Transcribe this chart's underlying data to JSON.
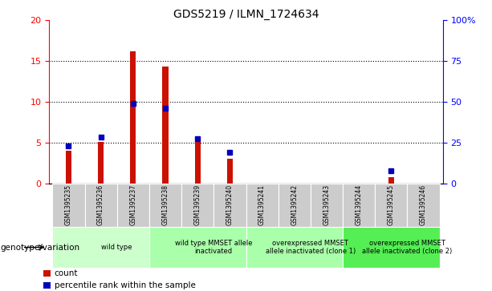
{
  "title": "GDS5219 / ILMN_1724634",
  "samples": [
    "GSM1395235",
    "GSM1395236",
    "GSM1395237",
    "GSM1395238",
    "GSM1395239",
    "GSM1395240",
    "GSM1395241",
    "GSM1395242",
    "GSM1395243",
    "GSM1395244",
    "GSM1395245",
    "GSM1395246"
  ],
  "count_values": [
    4.0,
    5.1,
    16.2,
    14.3,
    5.4,
    3.0,
    0.0,
    0.0,
    0.0,
    0.0,
    0.8,
    0.0
  ],
  "percentile_values": [
    23.0,
    28.5,
    49.0,
    46.0,
    27.5,
    19.0,
    0.0,
    0.0,
    0.0,
    0.0,
    7.5,
    0.0
  ],
  "ylim_left": [
    0,
    20
  ],
  "ylim_right": [
    0,
    100
  ],
  "yticks_left": [
    0,
    5,
    10,
    15,
    20
  ],
  "yticks_right": [
    0,
    25,
    50,
    75,
    100
  ],
  "bar_color": "#cc1100",
  "marker_color": "#0000bb",
  "groups": [
    {
      "label": "wild type",
      "start": 0,
      "end": 3,
      "color": "#ccffcc"
    },
    {
      "label": "wild type MMSET allele\ninactivated",
      "start": 3,
      "end": 6,
      "color": "#aaffaa"
    },
    {
      "label": "overexpressed MMSET\nallele inactivated (clone 1)",
      "start": 6,
      "end": 9,
      "color": "#aaffaa"
    },
    {
      "label": "overexpressed MMSET\nallele inactivated (clone 2)",
      "start": 9,
      "end": 12,
      "color": "#55ee55"
    }
  ],
  "xlabel_genotype": "genotype/variation",
  "legend_count": "count",
  "legend_percentile": "percentile rank within the sample",
  "bar_width": 0.18,
  "fig_width": 6.13,
  "fig_height": 3.63
}
